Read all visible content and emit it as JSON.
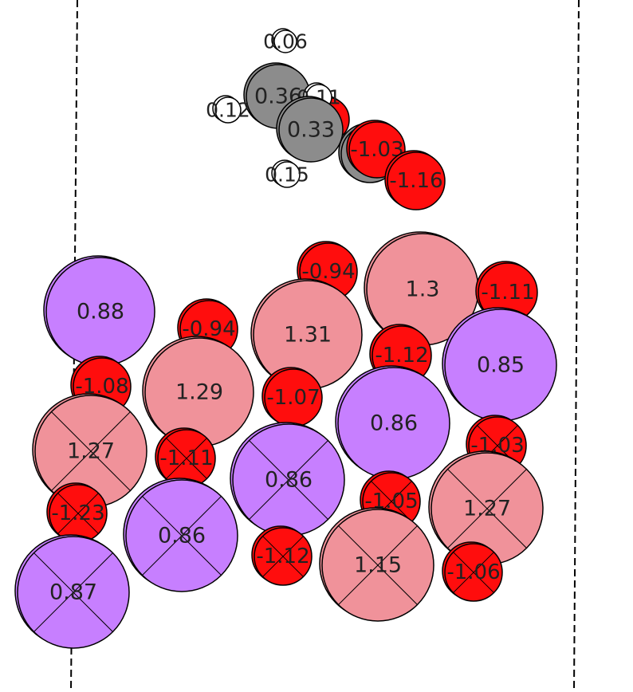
{
  "colors": {
    "background": "#ffffff",
    "outline": "#000000",
    "text": "#222222",
    "element_colors": {
      "H": "#ffffff",
      "C": "#8c8c8c",
      "O": "#ff0d0d",
      "Li": "#f0929a",
      "Na": "#c77fff"
    }
  },
  "atoms": [
    {
      "id": "H1",
      "element": "H",
      "charge": "0.06",
      "layer": "adsorbate",
      "crossed": false
    },
    {
      "id": "C1",
      "element": "C",
      "charge": "0.36",
      "layer": "adsorbate",
      "crossed": false
    },
    {
      "id": "O0",
      "element": "O",
      "charge": "",
      "layer": "adsorbate",
      "crossed": false
    },
    {
      "id": "H2",
      "element": "H",
      "charge": "0.11",
      "layer": "adsorbate",
      "crossed": false
    },
    {
      "id": "H3",
      "element": "H",
      "charge": "0.12",
      "layer": "adsorbate",
      "crossed": false
    },
    {
      "id": "C2",
      "element": "C",
      "charge": "0.33",
      "layer": "adsorbate",
      "crossed": false
    },
    {
      "id": "C3",
      "element": "C",
      "charge": "",
      "layer": "adsorbate",
      "crossed": false
    },
    {
      "id": "O1",
      "element": "O",
      "charge": "-1.03",
      "layer": "adsorbate",
      "crossed": false
    },
    {
      "id": "O2",
      "element": "O",
      "charge": "-1.16",
      "layer": "adsorbate",
      "crossed": false
    },
    {
      "id": "H4",
      "element": "H",
      "charge": "0.15",
      "layer": "adsorbate",
      "crossed": false
    },
    {
      "id": "Na1",
      "element": "Na",
      "charge": "0.88",
      "layer": "top",
      "crossed": false
    },
    {
      "id": "O3",
      "element": "O",
      "charge": "-0.94",
      "layer": "top",
      "crossed": false
    },
    {
      "id": "O4",
      "element": "O",
      "charge": "-0.94",
      "layer": "top",
      "crossed": false
    },
    {
      "id": "Li1",
      "element": "Li",
      "charge": "1.31",
      "layer": "top",
      "crossed": false
    },
    {
      "id": "Li2",
      "element": "Li",
      "charge": "1.3",
      "layer": "top",
      "crossed": false
    },
    {
      "id": "O5",
      "element": "O",
      "charge": "-1.11",
      "layer": "top",
      "crossed": false
    },
    {
      "id": "Na2",
      "element": "Na",
      "charge": "0.85",
      "layer": "top",
      "crossed": false
    },
    {
      "id": "O6",
      "element": "O",
      "charge": "-1.12",
      "layer": "top",
      "crossed": false
    },
    {
      "id": "Li3",
      "element": "Li",
      "charge": "1.29",
      "layer": "top",
      "crossed": false
    },
    {
      "id": "O7",
      "element": "O",
      "charge": "-1.08",
      "layer": "top",
      "crossed": false
    },
    {
      "id": "O8",
      "element": "O",
      "charge": "-1.07",
      "layer": "top",
      "crossed": false
    },
    {
      "id": "Na3",
      "element": "Na",
      "charge": "0.86",
      "layer": "top",
      "crossed": false
    },
    {
      "id": "Li4",
      "element": "Li",
      "charge": "1.27",
      "layer": "bottom",
      "crossed": true
    },
    {
      "id": "O9",
      "element": "O",
      "charge": "-1.11",
      "layer": "bottom",
      "crossed": true
    },
    {
      "id": "Na4",
      "element": "Na",
      "charge": "0.86",
      "layer": "bottom",
      "crossed": true
    },
    {
      "id": "O10",
      "element": "O",
      "charge": "-1.03",
      "layer": "bottom",
      "crossed": true
    },
    {
      "id": "Li5",
      "element": "Li",
      "charge": "1.27",
      "layer": "bottom",
      "crossed": true
    },
    {
      "id": "O11",
      "element": "O",
      "charge": "-1.23",
      "layer": "bottom",
      "crossed": true
    },
    {
      "id": "O12",
      "element": "O",
      "charge": "-1.05",
      "layer": "bottom",
      "crossed": true
    },
    {
      "id": "Na5",
      "element": "Na",
      "charge": "0.86",
      "layer": "bottom",
      "crossed": true
    },
    {
      "id": "O13",
      "element": "O",
      "charge": "-1.12",
      "layer": "bottom",
      "crossed": true
    },
    {
      "id": "Li6",
      "element": "Li",
      "charge": "1.15",
      "layer": "bottom",
      "crossed": true
    },
    {
      "id": "O14",
      "element": "O",
      "charge": "-1.06",
      "layer": "bottom",
      "crossed": true
    },
    {
      "id": "Na6",
      "element": "Na",
      "charge": "0.87",
      "layer": "bottom",
      "crossed": true
    }
  ]
}
